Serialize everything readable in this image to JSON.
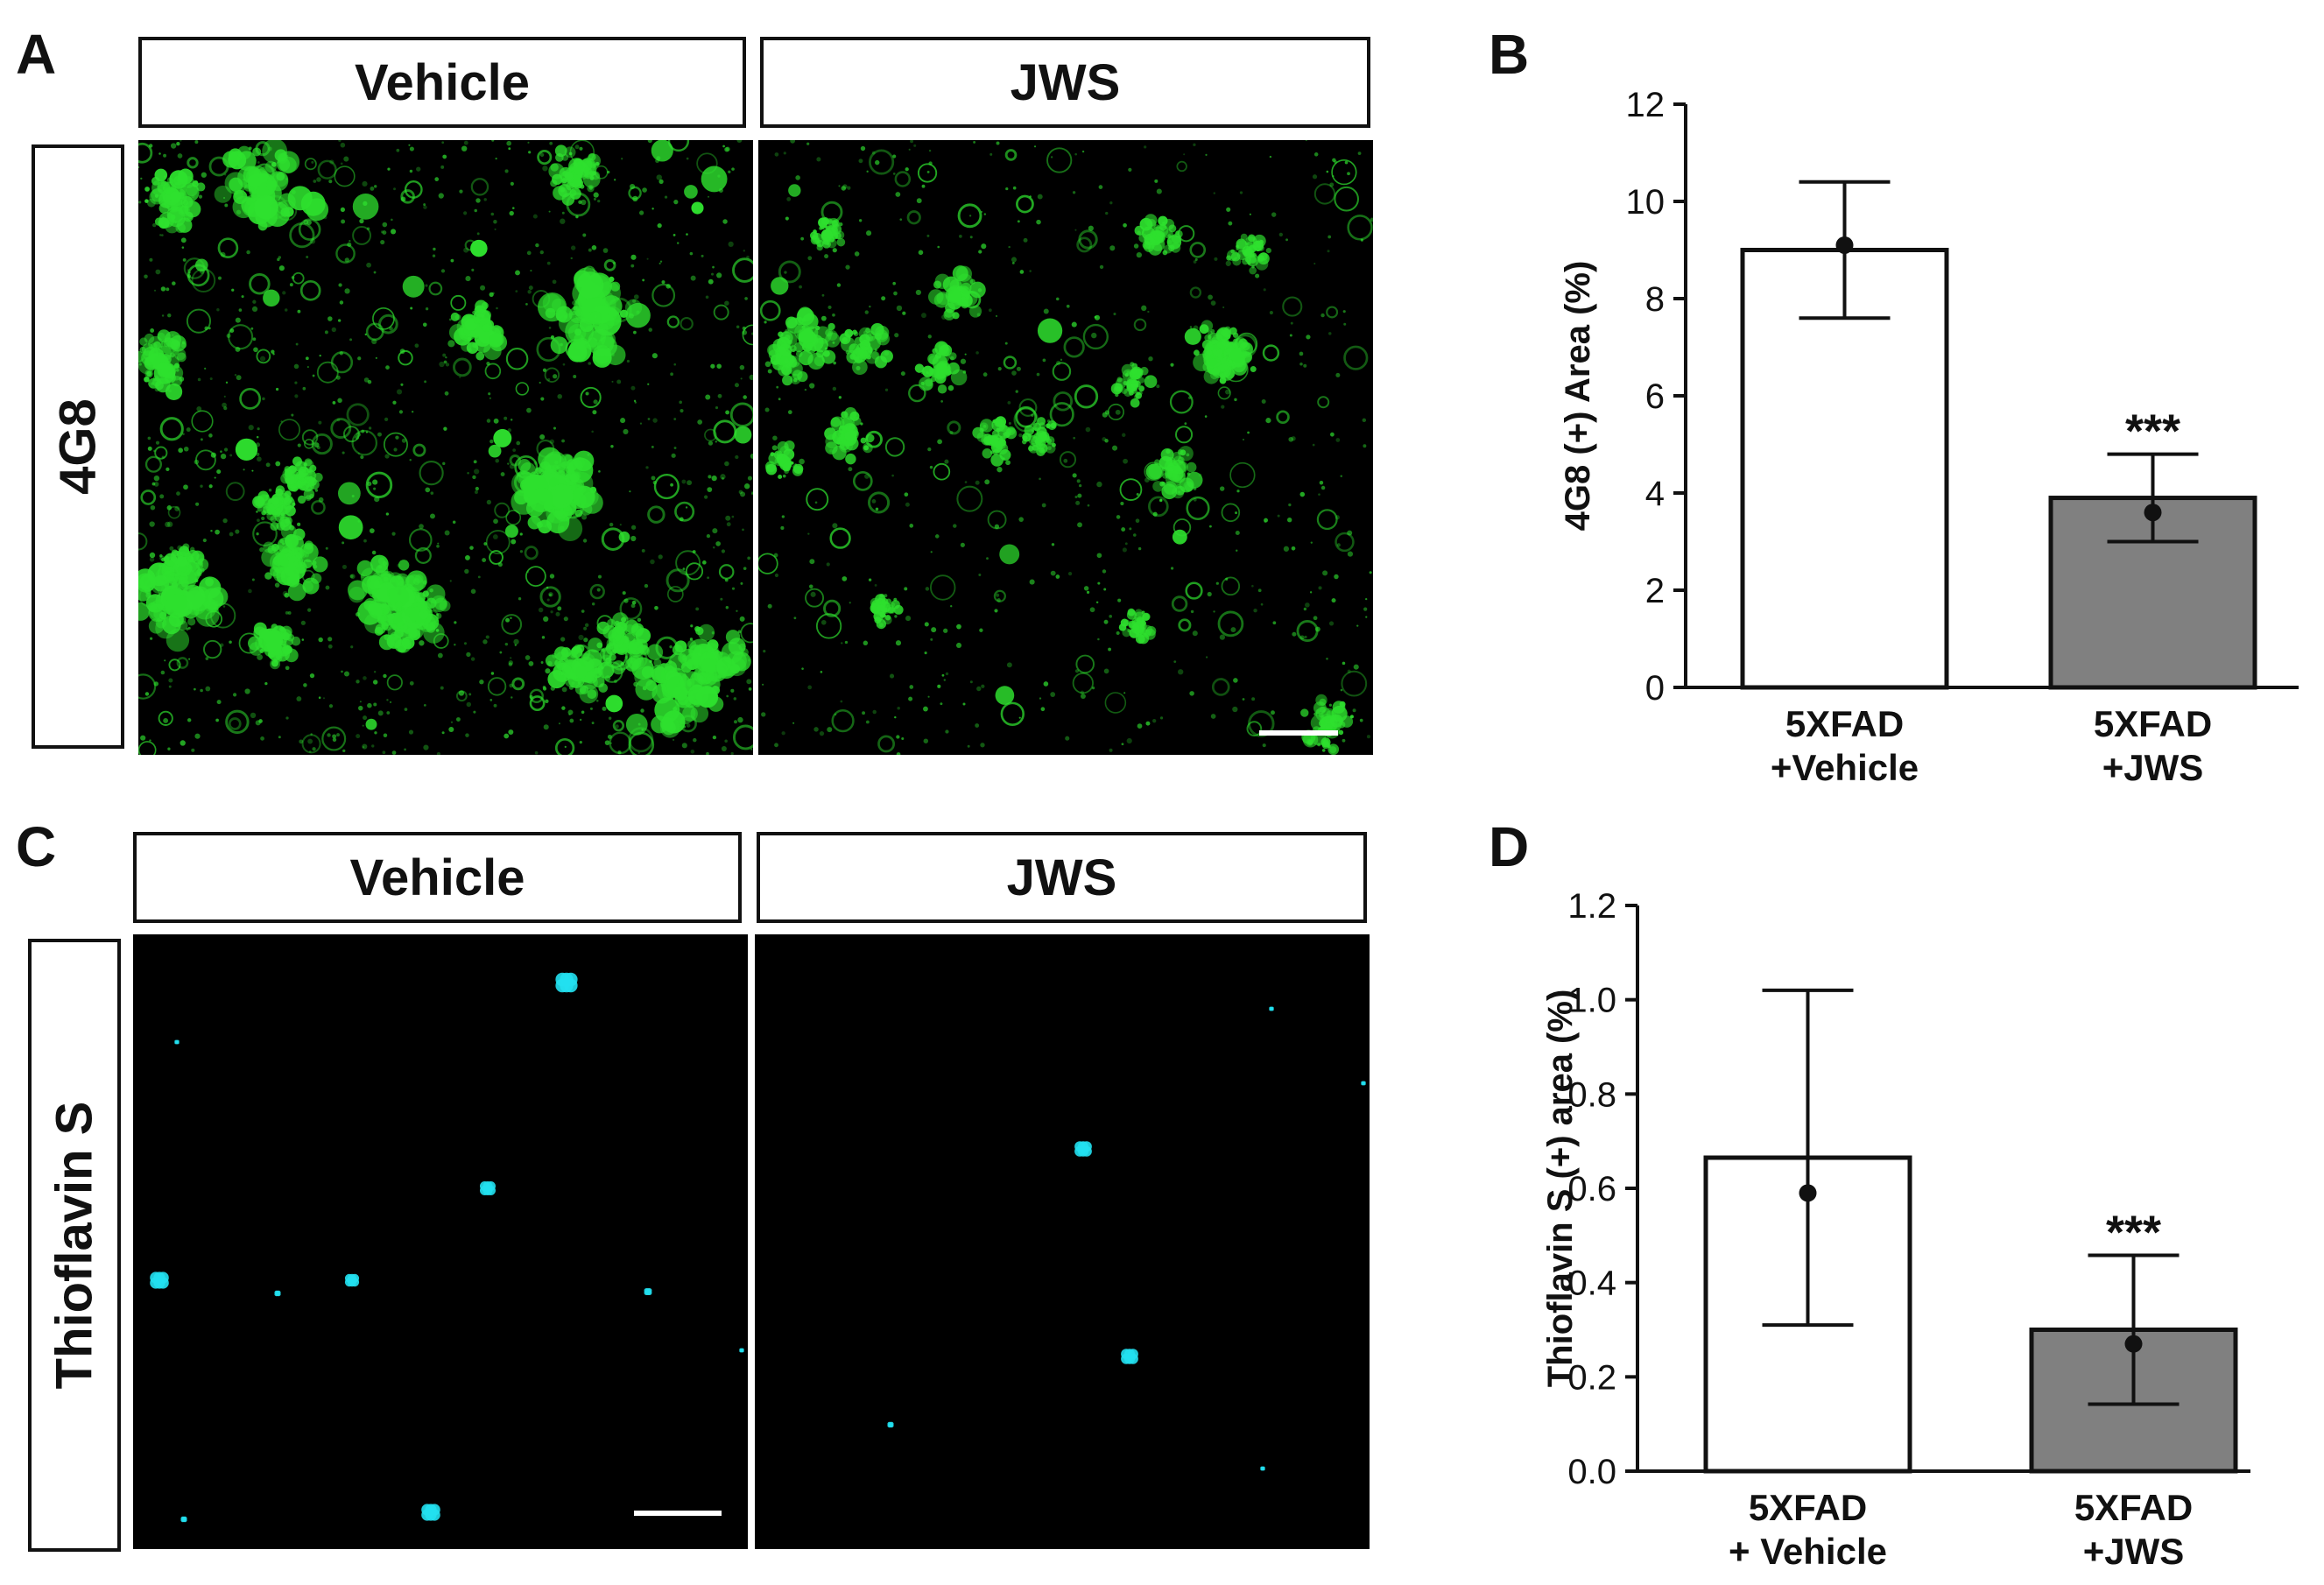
{
  "panels": {
    "A": {
      "letter": "A",
      "col_headers": [
        "Vehicle",
        "JWS"
      ],
      "row_label": "4G8",
      "stain_color": "#2ee02e"
    },
    "B": {
      "letter": "B"
    },
    "C": {
      "letter": "C",
      "col_headers": [
        "Vehicle",
        "JWS"
      ],
      "row_label": "Thioflavin S",
      "stain_color": "#22e0f0"
    },
    "D": {
      "letter": "D"
    }
  },
  "chart_data": [
    {
      "type": "bar",
      "panel": "B",
      "title": "",
      "ylabel": "4G8 (+) Area (%)",
      "xlabel": "",
      "ylim": [
        0,
        12
      ],
      "yticks": [
        0,
        2,
        4,
        6,
        8,
        10,
        12
      ],
      "ytick_labels": [
        "0",
        "2",
        "4",
        "6",
        "8",
        "10",
        "12"
      ],
      "categories": [
        [
          "5XFAD",
          "+Vehicle"
        ],
        [
          "5XFAD",
          "+JWS"
        ]
      ],
      "values": [
        9.0,
        3.9
      ],
      "error": [
        1.4,
        0.9
      ],
      "points": [
        9.1,
        3.6
      ],
      "bar_colors": [
        "#ffffff",
        "#808080"
      ],
      "annotations": [
        "",
        "***"
      ],
      "grid": false
    },
    {
      "type": "bar",
      "panel": "D",
      "title": "",
      "ylabel": "Thioflavin S (+)  area (%)",
      "xlabel": "",
      "ylim": [
        0,
        1.2
      ],
      "yticks": [
        0,
        0.2,
        0.4,
        0.6,
        0.8,
        1.0,
        1.2
      ],
      "ytick_labels": [
        "0.0",
        "0.2",
        "0.4",
        "0.6",
        "0.8",
        "1.0",
        "1.2"
      ],
      "categories": [
        [
          "5XFAD",
          "+ Vehicle"
        ],
        [
          "5XFAD",
          "+JWS"
        ]
      ],
      "values": [
        0.665,
        0.3
      ],
      "error": [
        0.355,
        0.158
      ],
      "points": [
        0.59,
        0.27
      ],
      "bar_colors": [
        "#ffffff",
        "#808080"
      ],
      "annotations": [
        "",
        "***"
      ],
      "grid": false
    }
  ]
}
